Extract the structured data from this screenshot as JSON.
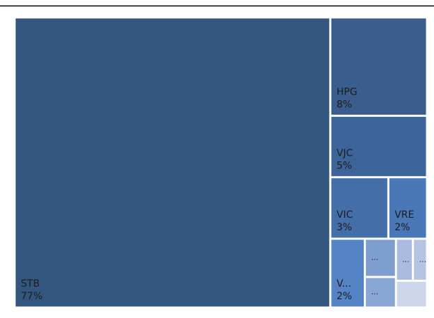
{
  "chart_data": {
    "type": "treemap",
    "categories": [
      "STB",
      "HPG",
      "VJC",
      "VIC",
      "VRE",
      "V...",
      "...",
      "...",
      "...",
      "...",
      null
    ],
    "values": [
      77,
      8,
      5,
      3,
      2,
      2,
      1,
      0.8,
      0.6,
      0.5,
      0.7
    ],
    "value_labels": [
      "77%",
      "8%",
      "5%",
      "3%",
      "2%",
      "2%",
      null,
      null,
      null,
      null,
      null
    ],
    "colors": [
      "#33567e",
      "#3a5d8d",
      "#3d6499",
      "#436ea8",
      "#4977b7",
      "#5483c6",
      "#7f9ed0",
      "#8aa6d4",
      "#a9bbdf",
      "#b5c4e3",
      "#cdd6ea"
    ]
  }
}
